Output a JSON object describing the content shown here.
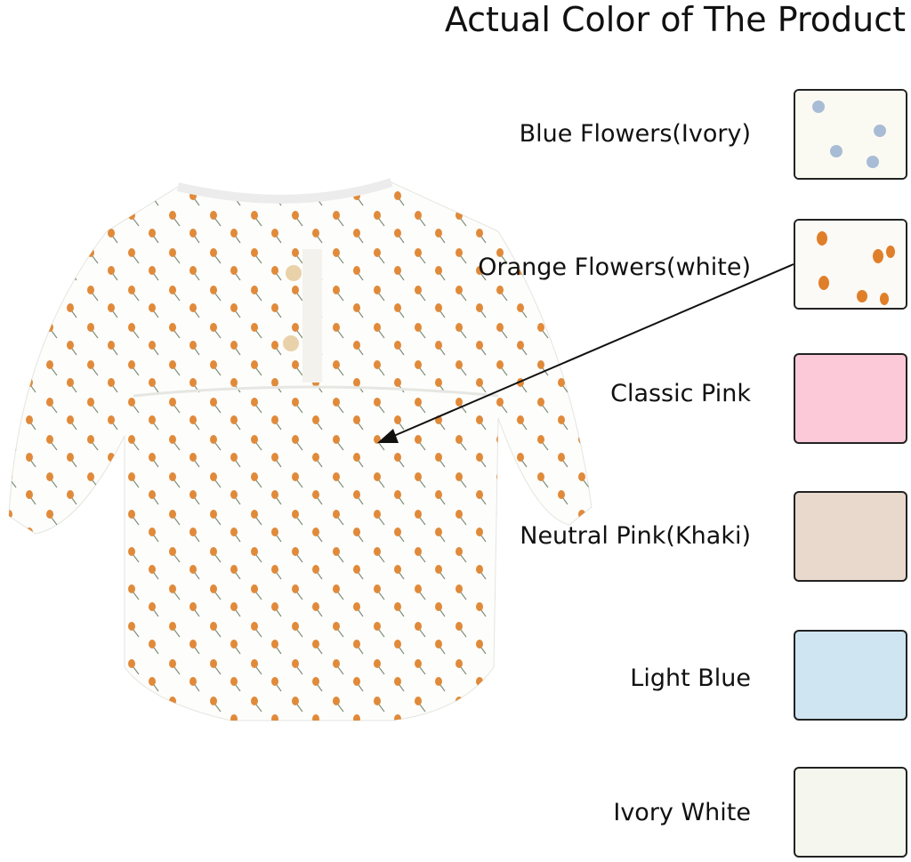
{
  "title": "Actual Color of The Product",
  "options": [
    {
      "label": "Blue Flowers(Ivory)",
      "swatch": "#fbfaf2",
      "pattern": "blue-flowers",
      "flower_color": "#a9bcd6"
    },
    {
      "label": "Orange Flowers(white)",
      "swatch": "#fbfaf7",
      "pattern": "orange-flowers",
      "flower_color": "#e07f2a"
    },
    {
      "label": "Classic Pink",
      "swatch": "#fbc9d7",
      "pattern": "solid"
    },
    {
      "label": "Neutral Pink(Khaki)",
      "swatch": "#e8d9cc",
      "pattern": "solid"
    },
    {
      "label": "Light Blue",
      "swatch": "#cfe5f1",
      "pattern": "solid"
    },
    {
      "label": "Ivory White",
      "swatch": "#f5f6ee",
      "pattern": "solid"
    }
  ],
  "product_image": "orange-flowers-romper"
}
